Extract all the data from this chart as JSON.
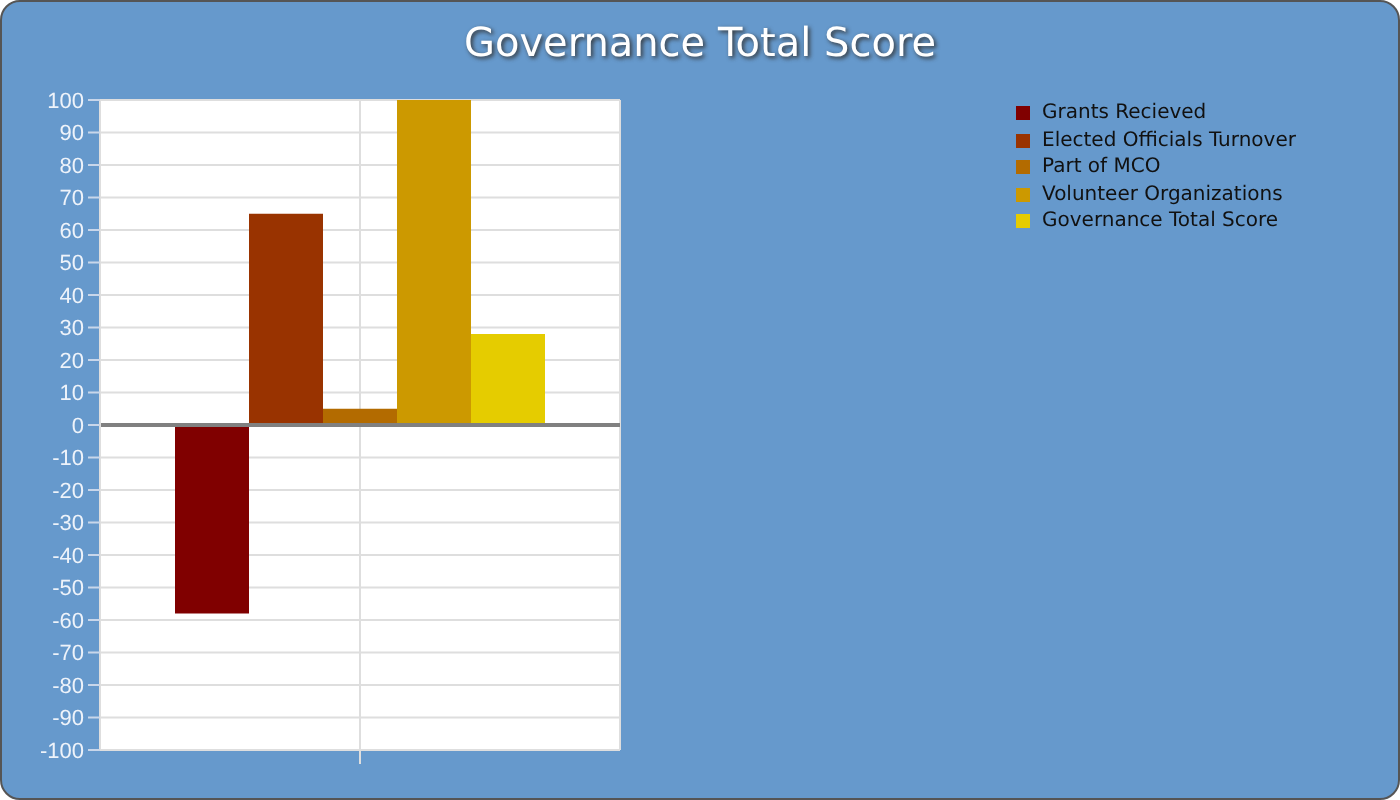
{
  "chart_data": {
    "type": "bar",
    "title": "Governance Total Score",
    "categories": [
      null
    ],
    "series": [
      {
        "name": "Grants Recieved",
        "color": "#800000",
        "values": [
          -58
        ]
      },
      {
        "name": "Elected Officials Turnover",
        "color": "#993300",
        "values": [
          65
        ]
      },
      {
        "name": "Part of MCO",
        "color": "#b36b00",
        "values": [
          5
        ]
      },
      {
        "name": "Volunteer Organizations",
        "color": "#cc9900",
        "values": [
          100
        ]
      },
      {
        "name": "Governance Total Score",
        "color": "#e5cc00",
        "values": [
          28
        ]
      }
    ],
    "ylim": [
      -100,
      100
    ],
    "yticks": [
      -100,
      -90,
      -80,
      -70,
      -60,
      -50,
      -40,
      -30,
      -20,
      -10,
      0,
      10,
      20,
      30,
      40,
      50,
      60,
      70,
      80,
      90,
      100
    ],
    "grid": true,
    "legend": "right",
    "ref_lines": [
      {
        "axis": "y",
        "value": 0,
        "color": "#808080"
      }
    ]
  }
}
